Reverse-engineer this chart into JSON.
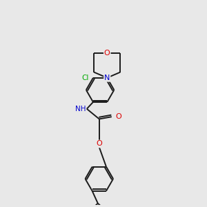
{
  "background_color": "#e8e8e8",
  "bond_color": "#1a1a1a",
  "atom_colors": {
    "O": "#dd0000",
    "N": "#0000cc",
    "Cl": "#00aa00",
    "C": "#1a1a1a"
  },
  "figsize": [
    3.0,
    3.0
  ],
  "dpi": 100,
  "lw": 1.4,
  "r_hex": 0.62
}
